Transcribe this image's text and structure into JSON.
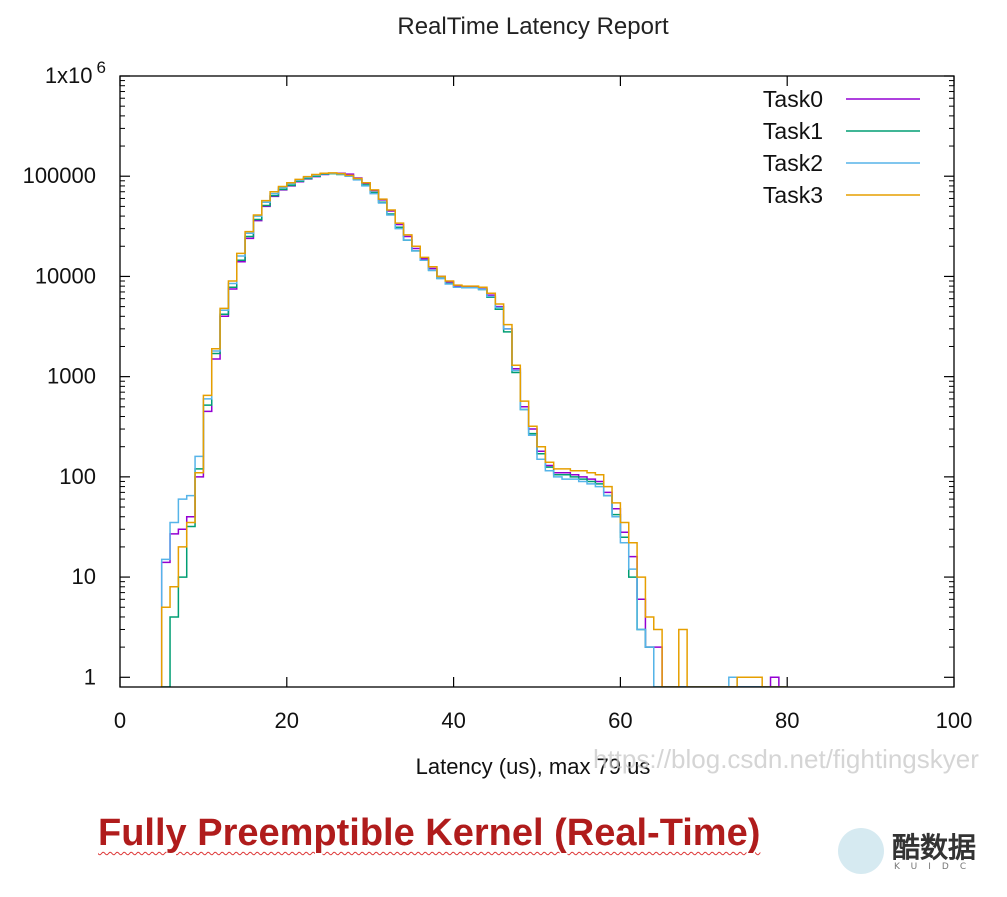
{
  "chart_data": {
    "type": "line",
    "title": "RealTime Latency Report",
    "xlabel": "Latency (us), max 79 us",
    "ylabel": "",
    "xlim": [
      0,
      100
    ],
    "ylim": [
      0.8,
      1000000
    ],
    "yscale": "log",
    "grid": false,
    "legend_position": "top-right",
    "x_ticks": [
      0,
      20,
      40,
      60,
      80,
      100
    ],
    "y_ticks": [
      {
        "value": 1,
        "label": "1"
      },
      {
        "value": 10,
        "label": "10"
      },
      {
        "value": 100,
        "label": "100"
      },
      {
        "value": 1000,
        "label": "1000"
      },
      {
        "value": 10000,
        "label": "10000"
      },
      {
        "value": 100000,
        "label": "100000"
      },
      {
        "value": 1000000,
        "label": "1x10",
        "sup": "6"
      }
    ],
    "series": [
      {
        "name": "Task0",
        "color": "#9400d3",
        "step": "histogram",
        "x": [
          5,
          6,
          7,
          8,
          9,
          10,
          11,
          12,
          13,
          14,
          15,
          16,
          17,
          18,
          19,
          20,
          21,
          22,
          23,
          24,
          25,
          26,
          27,
          28,
          29,
          30,
          31,
          32,
          33,
          34,
          35,
          36,
          37,
          38,
          39,
          40,
          41,
          42,
          43,
          44,
          45,
          46,
          47,
          48,
          49,
          50,
          51,
          52,
          53,
          54,
          55,
          56,
          57,
          58,
          59,
          60,
          61,
          62,
          63,
          64,
          65,
          66,
          67,
          68,
          69,
          70,
          71,
          72,
          73,
          74,
          75,
          76,
          77,
          78,
          79
        ],
        "y": [
          14,
          27,
          30,
          40,
          100,
          450,
          1500,
          4000,
          7500,
          14000,
          24000,
          36000,
          50000,
          63000,
          73000,
          80000,
          88000,
          94000,
          99000,
          104000,
          107000,
          107000,
          105000,
          96000,
          85000,
          72000,
          58000,
          45000,
          33000,
          25000,
          19000,
          15000,
          12000,
          10000,
          8800,
          8000,
          7800,
          7800,
          7500,
          6500,
          5000,
          3000,
          1200,
          500,
          300,
          180,
          130,
          110,
          110,
          105,
          100,
          95,
          90,
          70,
          48,
          28,
          16,
          6,
          2,
          2,
          0.5,
          0.5,
          0.5,
          0.5,
          0.5,
          0.5,
          0.5,
          0.5,
          0.5,
          0.5,
          0.5,
          0.5,
          0.5,
          1,
          0.5
        ]
      },
      {
        "name": "Task1",
        "color": "#009e73",
        "step": "histogram",
        "x": [
          5,
          6,
          7,
          8,
          9,
          10,
          11,
          12,
          13,
          14,
          15,
          16,
          17,
          18,
          19,
          20,
          21,
          22,
          23,
          24,
          25,
          26,
          27,
          28,
          29,
          30,
          31,
          32,
          33,
          34,
          35,
          36,
          37,
          38,
          39,
          40,
          41,
          42,
          43,
          44,
          45,
          46,
          47,
          48,
          49,
          50,
          51,
          52,
          53,
          54,
          55,
          56,
          57,
          58,
          59,
          60,
          61,
          62,
          63,
          64,
          65,
          66,
          67,
          68,
          69,
          70,
          71,
          72,
          73,
          74,
          75,
          76,
          77,
          78,
          79
        ],
        "y": [
          0.5,
          4,
          10,
          32,
          120,
          520,
          1700,
          4200,
          7800,
          14500,
          25000,
          37000,
          51000,
          64000,
          74000,
          81000,
          89000,
          95000,
          100000,
          105000,
          106000,
          104000,
          101000,
          93000,
          82000,
          69000,
          55000,
          42000,
          31000,
          23000,
          18000,
          14500,
          11500,
          9600,
          8500,
          7800,
          7700,
          7700,
          7400,
          6200,
          4700,
          2800,
          1100,
          470,
          270,
          170,
          125,
          105,
          105,
          100,
          95,
          90,
          85,
          65,
          42,
          25,
          10,
          3,
          2,
          0.5,
          0.5,
          0.5,
          0.5,
          0.5,
          0.5,
          0.5,
          0.5,
          0.5,
          0.5,
          0.5,
          0.5,
          0.5,
          0.5,
          0.5,
          0.5
        ]
      },
      {
        "name": "Task2",
        "color": "#56b4e9",
        "step": "histogram",
        "x": [
          5,
          6,
          7,
          8,
          9,
          10,
          11,
          12,
          13,
          14,
          15,
          16,
          17,
          18,
          19,
          20,
          21,
          22,
          23,
          24,
          25,
          26,
          27,
          28,
          29,
          30,
          31,
          32,
          33,
          34,
          35,
          36,
          37,
          38,
          39,
          40,
          41,
          42,
          43,
          44,
          45,
          46,
          47,
          48,
          49,
          50,
          51,
          52,
          53,
          54,
          55,
          56,
          57,
          58,
          59,
          60,
          61,
          62,
          63,
          64,
          65,
          66,
          67,
          68,
          69,
          70,
          71,
          72,
          73,
          74,
          75,
          76,
          77,
          78,
          79
        ],
        "y": [
          15,
          35,
          60,
          65,
          160,
          600,
          1800,
          4600,
          8500,
          16000,
          27000,
          40000,
          55000,
          67000,
          77000,
          84000,
          91000,
          97000,
          102000,
          106000,
          107000,
          105000,
          100000,
          92000,
          80000,
          67000,
          54000,
          41000,
          30000,
          23000,
          18000,
          14500,
          11500,
          9500,
          8400,
          7800,
          7700,
          7700,
          7400,
          6300,
          4900,
          3000,
          1150,
          470,
          260,
          150,
          115,
          100,
          95,
          95,
          90,
          85,
          80,
          65,
          40,
          22,
          12,
          3,
          2,
          0.5,
          0.5,
          0.5,
          0.5,
          0.5,
          0.5,
          0.5,
          0.5,
          0.5,
          1,
          0.5,
          0.5,
          0.5,
          0.5,
          0.5,
          0.5
        ]
      },
      {
        "name": "Task3",
        "color": "#e69f00",
        "step": "histogram",
        "x": [
          5,
          6,
          7,
          8,
          9,
          10,
          11,
          12,
          13,
          14,
          15,
          16,
          17,
          18,
          19,
          20,
          21,
          22,
          23,
          24,
          25,
          26,
          27,
          28,
          29,
          30,
          31,
          32,
          33,
          34,
          35,
          36,
          37,
          38,
          39,
          40,
          41,
          42,
          43,
          44,
          45,
          46,
          47,
          48,
          49,
          50,
          51,
          52,
          53,
          54,
          55,
          56,
          57,
          58,
          59,
          60,
          61,
          62,
          63,
          64,
          65,
          66,
          67,
          68,
          69,
          70,
          71,
          72,
          73,
          74,
          75,
          76,
          77,
          78,
          79
        ],
        "y": [
          5,
          8,
          20,
          35,
          110,
          650,
          1900,
          4800,
          9000,
          17000,
          28000,
          41000,
          57000,
          70000,
          79000,
          86000,
          93000,
          99000,
          104000,
          107000,
          108000,
          106000,
          102000,
          95000,
          86000,
          73000,
          59000,
          46000,
          34000,
          26000,
          20000,
          15500,
          12500,
          10000,
          9000,
          8200,
          8000,
          8000,
          7800,
          6800,
          5300,
          3300,
          1300,
          570,
          320,
          200,
          140,
          120,
          120,
          115,
          115,
          110,
          105,
          80,
          55,
          35,
          22,
          10,
          4,
          3,
          0.5,
          0.5,
          3,
          0.5,
          0.5,
          0.5,
          0.5,
          0.5,
          0.5,
          1,
          1,
          1,
          0.5,
          0.5,
          0.5
        ]
      }
    ]
  },
  "watermark": "https://blog.csdn.net/fightingskyer",
  "caption": {
    "text": "Fully Preemptible Kernel (Real-Time)"
  },
  "logo": {
    "brand": "酷数据",
    "sub": "KUIDC",
    "icon": "kuidc-logo-icon"
  }
}
